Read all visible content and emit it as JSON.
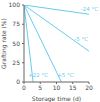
{
  "chart_data": {
    "type": "line",
    "xlabel": "Storage time (d)",
    "ylabel": "Grafting rate (%)",
    "xlim": [
      0,
      20
    ],
    "ylim": [
      0,
      100
    ],
    "xticks": [
      0,
      5,
      10,
      15,
      20
    ],
    "yticks": [
      0,
      25,
      50,
      75,
      100
    ],
    "grid": false,
    "color": "#66ccee",
    "series": [
      {
        "x": [
          0,
          20
        ],
        "values": [
          100,
          88
        ]
      },
      {
        "x": [
          0,
          20
        ],
        "values": [
          100,
          40
        ]
      },
      {
        "x": [
          0,
          11.5
        ],
        "values": [
          100,
          0
        ]
      },
      {
        "x": [
          0,
          2.8
        ],
        "values": [
          100,
          0
        ]
      }
    ],
    "annotations": [
      {
        "text": "-24 °C",
        "x": 17.5,
        "y": 91
      },
      {
        "text": "-5 °C",
        "x": 15.5,
        "y": 52
      },
      {
        "text": "+5 °C",
        "x": 10.2,
        "y": 5
      },
      {
        "text": "+22 °C",
        "x": 1.3,
        "y": 5
      }
    ]
  }
}
